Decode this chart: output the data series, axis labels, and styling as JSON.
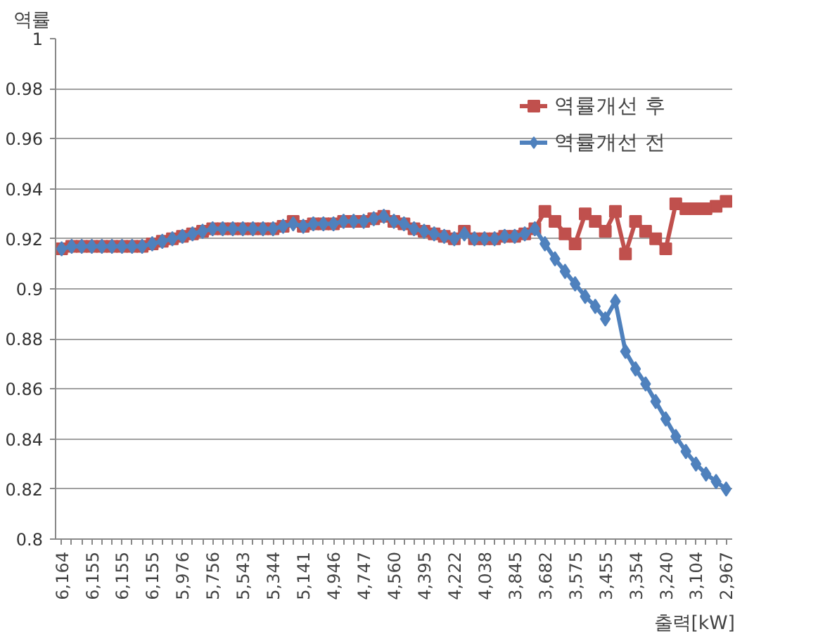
{
  "chart_data": {
    "type": "line",
    "xlabel": "출력[kW]",
    "ylabel": "역률",
    "categories": [
      "6,164",
      null,
      null,
      "6,155",
      null,
      null,
      "6,155",
      null,
      null,
      "6,155",
      null,
      null,
      "5,976",
      null,
      null,
      "5,756",
      null,
      null,
      "5,543",
      null,
      null,
      "5,344",
      null,
      null,
      "5,141",
      null,
      null,
      "4,946",
      null,
      null,
      "4,747",
      null,
      null,
      "4,560",
      null,
      null,
      "4,395",
      null,
      null,
      "4,222",
      null,
      null,
      "4,038",
      null,
      null,
      "3,845",
      null,
      null,
      "3,682",
      null,
      null,
      "3,575",
      null,
      null,
      "3,455",
      null,
      null,
      "3,354",
      null,
      null,
      "3,240",
      null,
      null,
      "3,104",
      null,
      null,
      "2,967"
    ],
    "series": [
      {
        "name": "역률개선 후",
        "color": "#c0504d",
        "marker": "square",
        "values": [
          0.916,
          0.917,
          0.917,
          0.917,
          0.917,
          0.917,
          0.917,
          0.917,
          0.917,
          0.918,
          0.919,
          0.92,
          0.921,
          0.922,
          0.923,
          0.924,
          0.924,
          0.924,
          0.924,
          0.924,
          0.924,
          0.924,
          0.925,
          0.927,
          0.925,
          0.926,
          0.926,
          0.926,
          0.927,
          0.927,
          0.927,
          0.928,
          0.929,
          0.927,
          0.926,
          0.924,
          0.923,
          0.922,
          0.921,
          0.92,
          0.923,
          0.92,
          0.92,
          0.92,
          0.921,
          0.921,
          0.922,
          0.924,
          0.931,
          0.927,
          0.922,
          0.918,
          0.93,
          0.927,
          0.923,
          0.931,
          0.914,
          0.927,
          0.923,
          0.92,
          0.916,
          0.934,
          0.932,
          0.932,
          0.932,
          0.933,
          0.935
        ]
      },
      {
        "name": "역률개선 전",
        "color": "#4f81bd",
        "marker": "diamond",
        "values": [
          0.916,
          0.917,
          0.917,
          0.917,
          0.917,
          0.917,
          0.917,
          0.917,
          0.917,
          0.918,
          0.919,
          0.92,
          0.921,
          0.922,
          0.923,
          0.924,
          0.924,
          0.924,
          0.924,
          0.924,
          0.924,
          0.924,
          0.925,
          0.926,
          0.925,
          0.926,
          0.926,
          0.926,
          0.927,
          0.927,
          0.927,
          0.928,
          0.929,
          0.927,
          0.926,
          0.924,
          0.923,
          0.922,
          0.921,
          0.92,
          0.922,
          0.92,
          0.92,
          0.92,
          0.921,
          0.921,
          0.922,
          0.924,
          0.918,
          0.912,
          0.907,
          0.902,
          0.897,
          0.893,
          0.888,
          0.895,
          0.875,
          0.868,
          0.862,
          0.855,
          0.848,
          0.841,
          0.835,
          0.83,
          0.826,
          0.823,
          0.82
        ]
      }
    ],
    "ylim": [
      0.8,
      1
    ],
    "yticks": [
      0.8,
      0.82,
      0.84,
      0.86,
      0.88,
      0.9,
      0.92,
      0.94,
      0.96,
      0.98,
      1
    ],
    "grid": "y",
    "legend": "top right",
    "line_style": "solid"
  }
}
